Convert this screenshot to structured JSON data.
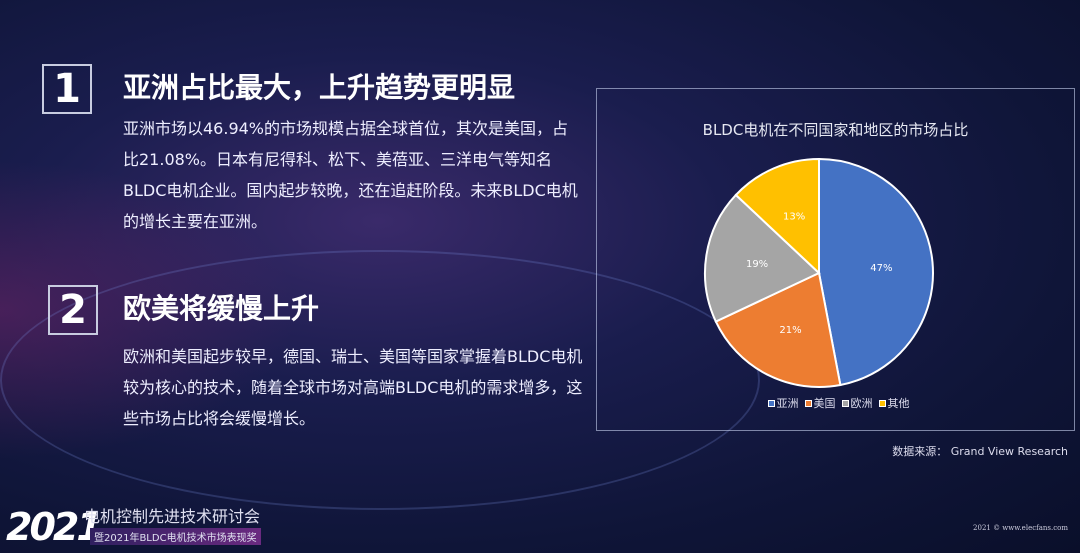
{
  "section1": {
    "number": "1",
    "heading": "亚洲占比最大，上升趋势更明显",
    "body": "亚洲市场以46.94%的市场规模占据全球首位，其次是美国，占比21.08%。日本有尼得科、松下、美蓓亚、三洋电气等知名BLDC电机企业。国内起步较晚，还在追赶阶段。未来BLDC电机的增长主要在亚洲。"
  },
  "section2": {
    "number": "2",
    "heading": "欧美将缓慢上升",
    "body": "欧洲和美国起步较早，德国、瑞士、美国等国家掌握着BLDC电机较为核心的技术，随着全球市场对高端BLDC电机的需求增多，这些市场占比将会缓慢增长。"
  },
  "chart_data": {
    "type": "pie",
    "title": "BLDC电机在不同国家和地区的市场占比",
    "categories": [
      "亚洲",
      "美国",
      "欧洲",
      "其他"
    ],
    "values": [
      47,
      21,
      19,
      13
    ],
    "labels": [
      "47%",
      "21%",
      "19%",
      "13%"
    ],
    "colors": [
      "#4472c4",
      "#ed7d31",
      "#a5a5a5",
      "#ffc000"
    ],
    "legend": "bottom",
    "start": "top-clockwise"
  },
  "source": "数据来源：  Grand View Research",
  "footer": {
    "logo": "2021",
    "line1": "电机控制先进技术研讨会",
    "line2": "暨2021年BLDC电机技术市场表现奖",
    "copyright": "2021 © www.elecfans.com"
  }
}
